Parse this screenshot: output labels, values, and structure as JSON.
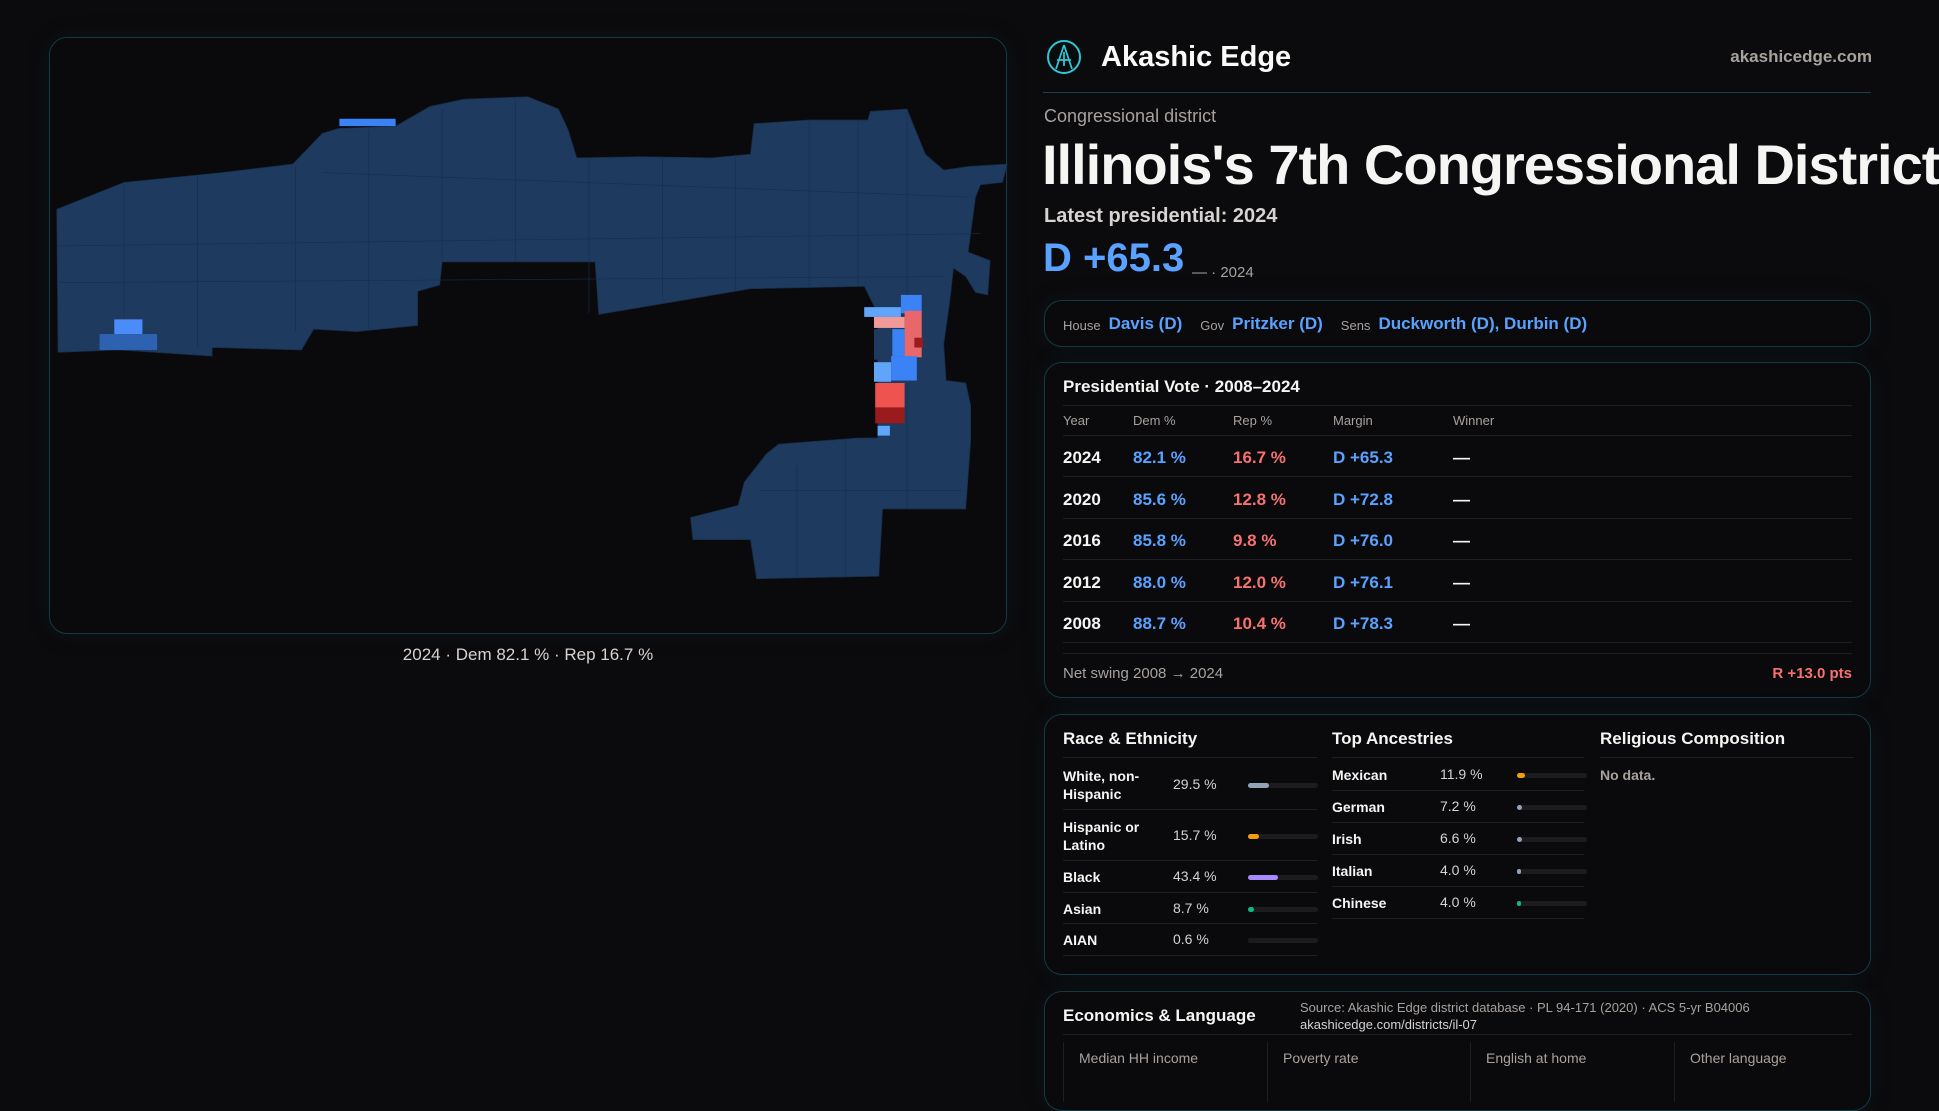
{
  "brand": {
    "name": "Akashic Edge",
    "site": "akashicedge.com",
    "logo_icon": "compass-logo-icon"
  },
  "header": {
    "kicker": "Congressional district",
    "title": "Illinois's 7th Congressional District",
    "latest": "Latest presidential: 2024",
    "margin": "D +65.3",
    "margin_sub": "— · 2024"
  },
  "officials": [
    {
      "label": "House",
      "value": "Davis (D)"
    },
    {
      "label": "Gov",
      "value": "Pritzker (D)"
    },
    {
      "label": "Sens",
      "value": "Duckworth (D), Durbin (D)"
    }
  ],
  "map": {
    "caption": "2024 · Dem 82.1 % · Rep 16.7 %",
    "colors": {
      "base": "#1e3a5f",
      "blue": "#3b82f6",
      "light_blue": "#60a5fa",
      "red": "#ef5350",
      "pink": "#f29a9a",
      "dark_red": "#991b1b"
    }
  },
  "presidential": {
    "title": "Presidential Vote · 2008–2024",
    "columns": [
      "Year",
      "Dem %",
      "Rep %",
      "Margin",
      "Winner"
    ],
    "rows": [
      {
        "year": "2024",
        "dem": "82.1 %",
        "rep": "16.7 %",
        "margin": "D +65.3",
        "winner": "—"
      },
      {
        "year": "2020",
        "dem": "85.6 %",
        "rep": "12.8 %",
        "margin": "D +72.8",
        "winner": "—"
      },
      {
        "year": "2016",
        "dem": "85.8 %",
        "rep": "9.8 %",
        "margin": "D +76.0",
        "winner": "—"
      },
      {
        "year": "2012",
        "dem": "88.0 %",
        "rep": "12.0 %",
        "margin": "D +76.1",
        "winner": "—"
      },
      {
        "year": "2008",
        "dem": "88.7 %",
        "rep": "10.4 %",
        "margin": "D +78.3",
        "winner": "—"
      }
    ],
    "swing_label": "Net swing 2008 → 2024",
    "swing_value": "R +13.0 pts"
  },
  "race": {
    "title": "Race & Ethnicity",
    "rows": [
      {
        "label": "White, non-Hispanic",
        "pct": "29.5 %",
        "value": 29.5,
        "color": "#94a3b8"
      },
      {
        "label": "Hispanic or Latino",
        "pct": "15.7 %",
        "value": 15.7,
        "color": "#f59e0b"
      },
      {
        "label": "Black",
        "pct": "43.4 %",
        "value": 43.4,
        "color": "#a78bfa"
      },
      {
        "label": "Asian",
        "pct": "8.7 %",
        "value": 8.7,
        "color": "#10b981"
      },
      {
        "label": "AIAN",
        "pct": "0.6 %",
        "value": 0.6,
        "color": "#1c1c1f"
      }
    ]
  },
  "ancestry": {
    "title": "Top Ancestries",
    "rows": [
      {
        "label": "Mexican",
        "pct": "11.9 %",
        "value": 11.9,
        "color": "#f59e0b"
      },
      {
        "label": "German",
        "pct": "7.2 %",
        "value": 7.2,
        "color": "#94a3b8"
      },
      {
        "label": "Irish",
        "pct": "6.6 %",
        "value": 6.6,
        "color": "#94a3b8"
      },
      {
        "label": "Italian",
        "pct": "4.0 %",
        "value": 4.0,
        "color": "#94a3b8"
      },
      {
        "label": "Chinese",
        "pct": "4.0 %",
        "value": 4.0,
        "color": "#10b981"
      }
    ]
  },
  "religion": {
    "title": "Religious Composition",
    "empty": "No data."
  },
  "economics": {
    "title": "Economics & Language",
    "labels": [
      "Median HH income",
      "Poverty rate",
      "English at home",
      "Other language"
    ]
  },
  "footer": {
    "source": "Source: Akashic Edge district database · PL 94-171 (2020) · ACS 5-yr B04006",
    "url": "akashicedge.com/districts/il-07"
  }
}
